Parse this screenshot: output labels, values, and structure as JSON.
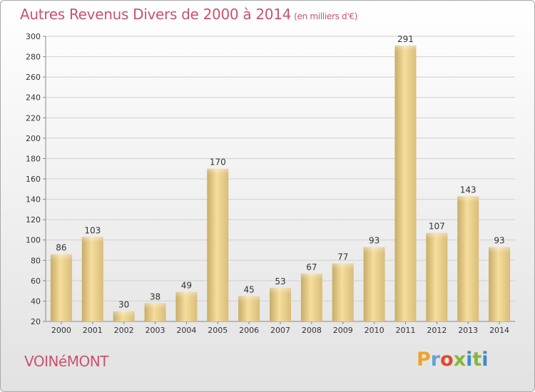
{
  "header": {
    "title": "Autres Revenus Divers de 2000 à 2014",
    "subtitle": "(en milliers d'€)"
  },
  "footer": {
    "city": "VOINéMONT",
    "logo": "Proxiti"
  },
  "colors": {
    "title": "#c8536e",
    "bar_light": "#f6dfa0",
    "bar_dark": "#c9ad68"
  },
  "chart_data": {
    "type": "bar",
    "title": "Autres Revenus Divers de 2000 à 2014",
    "subtitle": "(en milliers d'€)",
    "xlabel": "",
    "ylabel": "",
    "categories": [
      "2000",
      "2001",
      "2002",
      "2003",
      "2004",
      "2005",
      "2006",
      "2007",
      "2008",
      "2009",
      "2010",
      "2011",
      "2012",
      "2013",
      "2014"
    ],
    "values": [
      86,
      103,
      30,
      38,
      49,
      170,
      45,
      53,
      67,
      77,
      93,
      291,
      107,
      143,
      93
    ],
    "ylim": [
      20,
      300
    ],
    "yticks": [
      20,
      40,
      60,
      80,
      100,
      120,
      140,
      160,
      180,
      200,
      220,
      240,
      260,
      280,
      300
    ],
    "grid": true,
    "data_labels": true
  }
}
